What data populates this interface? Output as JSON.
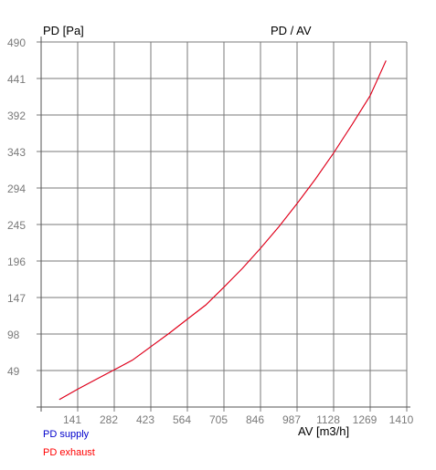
{
  "chart_data": {
    "type": "line",
    "title": "PD / AV",
    "ylabel": "PD [Pa]",
    "xlabel": "AV [m3/h]",
    "xlim": [
      0,
      1410
    ],
    "ylim": [
      0,
      490
    ],
    "x_ticks": [
      141,
      282,
      423,
      564,
      705,
      846,
      987,
      1128,
      1269,
      1410
    ],
    "y_ticks": [
      49,
      98,
      147,
      196,
      245,
      294,
      343,
      392,
      441,
      490
    ],
    "grid": true,
    "legend_position": "bottom-left",
    "series": [
      {
        "name": "PD supply",
        "color": "#0000cc",
        "x": [
          70,
          141,
          211,
          282,
          352,
          423,
          494,
          564,
          635,
          705,
          776,
          846,
          917,
          987,
          1058,
          1128,
          1199,
          1269,
          1330
        ],
        "y": [
          10,
          24,
          37,
          50,
          63,
          81,
          99,
          118,
          137,
          161,
          186,
          213,
          242,
          273,
          306,
          341,
          379,
          418,
          465
        ]
      },
      {
        "name": "PD exhaust",
        "color": "#ff0000",
        "x": [
          70,
          141,
          211,
          282,
          352,
          423,
          494,
          564,
          635,
          705,
          776,
          846,
          917,
          987,
          1058,
          1128,
          1199,
          1269,
          1330
        ],
        "y": [
          10,
          24,
          37,
          50,
          63,
          81,
          99,
          118,
          137,
          161,
          186,
          213,
          242,
          273,
          306,
          341,
          379,
          418,
          465
        ]
      }
    ]
  }
}
